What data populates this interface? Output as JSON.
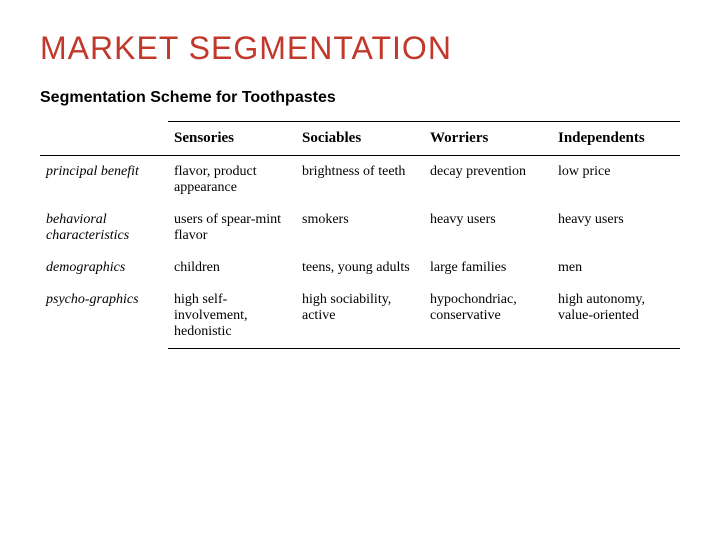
{
  "title": "MARKET SEGMENTATION",
  "title_color": "#c0392b",
  "title_fontsize": 32,
  "subtitle": "Segmentation Scheme for Toothpastes",
  "subtitle_color": "#000000",
  "subtitle_fontsize": 16,
  "table": {
    "header_fontsize": 15,
    "header_fontweight": "700",
    "body_fontsize": 14,
    "rowlabel_fontstyle": "italic",
    "border_color": "#000000",
    "columns": [
      "",
      "Sensories",
      "Sociables",
      "Worriers",
      "Independents"
    ],
    "rows": [
      {
        "label": "principal benefit",
        "cells": [
          "flavor, product appearance",
          "brightness of teeth",
          "decay prevention",
          "low price"
        ]
      },
      {
        "label": "behavioral characteristics",
        "cells": [
          "users of spear-mint flavor",
          "smokers",
          "heavy users",
          "heavy users"
        ]
      },
      {
        "label": "demographics",
        "cells": [
          "children",
          "teens, young adults",
          "large families",
          "men"
        ]
      },
      {
        "label": "psycho-graphics",
        "cells": [
          "high self-involvement, hedonistic",
          "high sociability, active",
          "hypochondriac, conservative",
          "high autonomy, value-oriented"
        ]
      }
    ]
  },
  "background_color": "#ffffff"
}
